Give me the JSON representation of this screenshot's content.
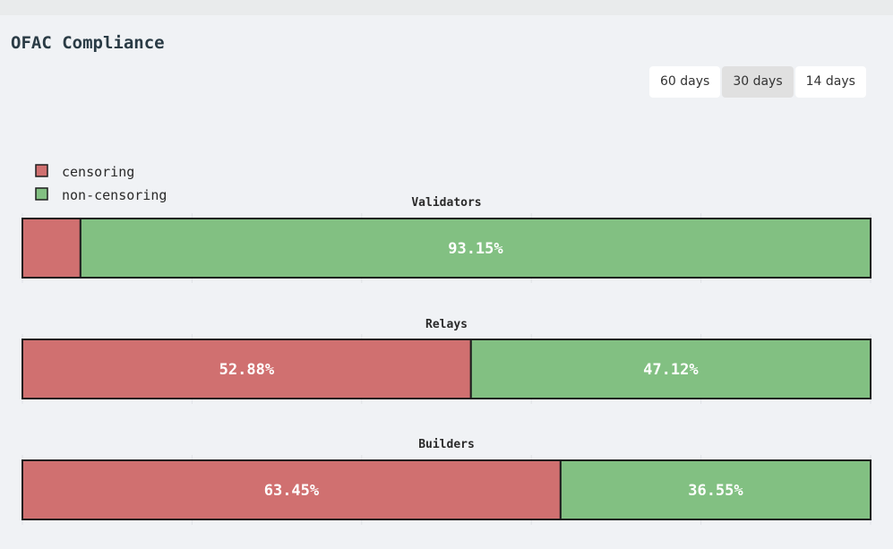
{
  "header": {
    "title": "OFAC Compliance"
  },
  "range_buttons": {
    "items": [
      "60 days",
      "30 days",
      "14 days"
    ],
    "active": "30 days"
  },
  "colors": {
    "censoring": "#d07070",
    "non_censoring": "#82c082",
    "border": "#1e1e1e",
    "grid": "#e0e2e6"
  },
  "chart_data": {
    "type": "bar",
    "orientation": "horizontal-stacked-100",
    "legend": {
      "placement": "top-left",
      "entries": [
        "censoring",
        "non-censoring"
      ]
    },
    "xlim": [
      0,
      100
    ],
    "grid": true,
    "panels": [
      {
        "title": "Validators",
        "censoring": 6.85,
        "non_censoring": 93.15,
        "labels": [
          "",
          "93.15%"
        ]
      },
      {
        "title": "Relays",
        "censoring": 52.88,
        "non_censoring": 47.12,
        "labels": [
          "52.88%",
          "47.12%"
        ]
      },
      {
        "title": "Builders",
        "censoring": 63.45,
        "non_censoring": 36.55,
        "labels": [
          "63.45%",
          "36.55%"
        ]
      }
    ]
  }
}
